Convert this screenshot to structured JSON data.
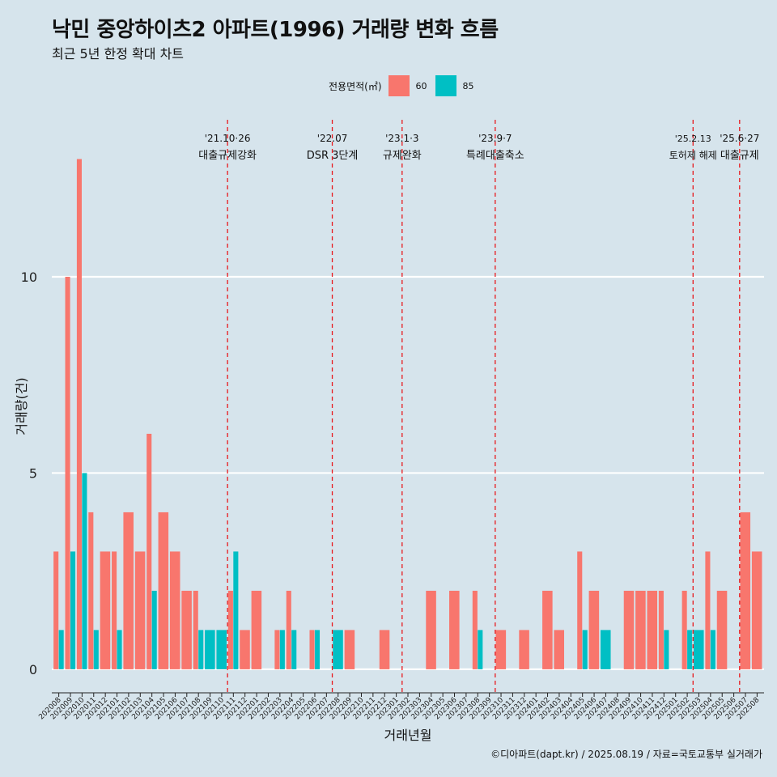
{
  "chart_data": {
    "type": "bar",
    "title": "낙민 중앙하이츠2 아파트(1996) 거래량 변화 흐름",
    "subtitle": "최근 5년 한정 확대 차트",
    "xlabel": "거래년월",
    "ylabel": "거래량(건)",
    "caption": "©디아파트(dapt.kr) / 2025.08.19 / 자료=국토교통부 실거래가",
    "legend": {
      "title": "전용면적(㎡)",
      "placement": "top",
      "items": [
        {
          "name": "60",
          "color": "#F8766D"
        },
        {
          "name": "85",
          "color": "#00BFC4"
        }
      ]
    },
    "yticks": [
      0,
      5,
      10
    ],
    "ylim": [
      -0.6,
      14.0
    ],
    "categories": [
      "202008",
      "202009",
      "202010",
      "202011",
      "202012",
      "202101",
      "202102",
      "202103",
      "202104",
      "202105",
      "202106",
      "202107",
      "202108",
      "202109",
      "202110",
      "202111",
      "202112",
      "202201",
      "202202",
      "202203",
      "202204",
      "202205",
      "202206",
      "202207",
      "202208",
      "202209",
      "202210",
      "202211",
      "202212",
      "202301",
      "202302",
      "202303",
      "202304",
      "202305",
      "202306",
      "202307",
      "202308",
      "202309",
      "202310",
      "202311",
      "202312",
      "202401",
      "202402",
      "202403",
      "202404",
      "202405",
      "202406",
      "202407",
      "202408",
      "202409",
      "202410",
      "202411",
      "202412",
      "202501",
      "202502",
      "202503",
      "202504",
      "202505",
      "202506",
      "202507",
      "202508"
    ],
    "series": [
      {
        "name": "60",
        "color": "#F8766D",
        "values": [
          3,
          10,
          13,
          4,
          3,
          3,
          4,
          3,
          6,
          4,
          3,
          2,
          2,
          0,
          0,
          2,
          1,
          2,
          0,
          1,
          2,
          0,
          1,
          0,
          0,
          1,
          0,
          0,
          1,
          0,
          0,
          0,
          2,
          0,
          2,
          0,
          2,
          0,
          1,
          0,
          1,
          0,
          2,
          1,
          0,
          3,
          2,
          0,
          0,
          2,
          2,
          2,
          2,
          0,
          2,
          0,
          3,
          2,
          0,
          4,
          3
        ]
      },
      {
        "name": "85",
        "color": "#00BFC4",
        "values": [
          1,
          3,
          5,
          1,
          0,
          1,
          0,
          0,
          2,
          0,
          0,
          0,
          1,
          1,
          1,
          3,
          0,
          0,
          0,
          1,
          1,
          0,
          1,
          0,
          1,
          0,
          0,
          0,
          0,
          0,
          0,
          0,
          0,
          0,
          0,
          0,
          1,
          0,
          0,
          0,
          0,
          0,
          0,
          0,
          0,
          1,
          0,
          1,
          0,
          0,
          0,
          0,
          1,
          0,
          1,
          1,
          1,
          0,
          0,
          0,
          0
        ]
      }
    ],
    "annotations": [
      {
        "x": "202110",
        "date": "'21.10·26",
        "label": "대출규제강화"
      },
      {
        "x": "202207",
        "date": "'22.07",
        "label": "DSR 3단계"
      },
      {
        "x": "202301",
        "date": "'23.1·3",
        "label": "규제완화"
      },
      {
        "x": "202309",
        "date": "'23.9·7",
        "label": "특례대출축소"
      },
      {
        "x": "202502",
        "date": "'25.2.13",
        "label": "토허제 해제"
      },
      {
        "x": "202506",
        "date": "'25.6·27",
        "label": "대출규제"
      }
    ]
  }
}
